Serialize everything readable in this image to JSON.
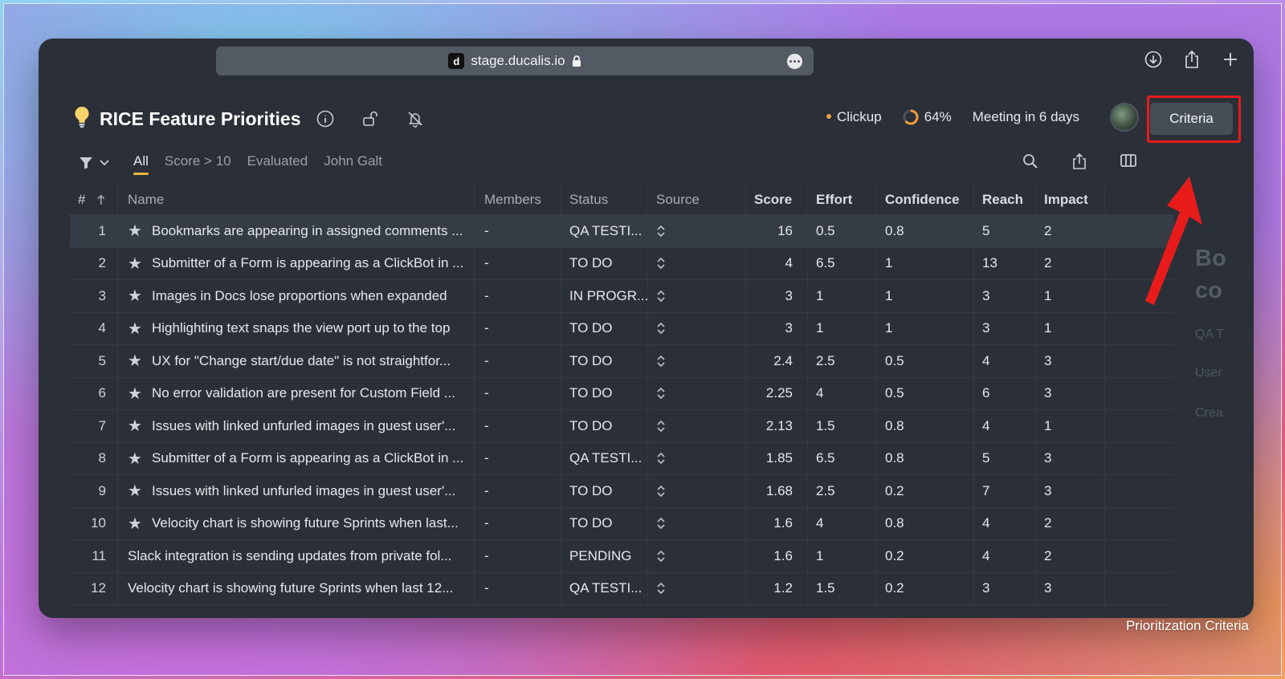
{
  "browser": {
    "url": "stage.ducalis.io",
    "favicon_letter": "d",
    "toolbar_icons": [
      "download-icon",
      "share-icon",
      "new-tab-icon"
    ]
  },
  "header": {
    "title": "RICE Feature Priorities",
    "integration": "Clickup",
    "progress_label": "64%",
    "progress_value": 64,
    "meeting": "Meeting in 6 days",
    "criteria_button": "Criteria",
    "accent_color": "#f3b63f",
    "highlight_color": "#e81b1b"
  },
  "filters": {
    "tabs": [
      "All",
      "Score > 10",
      "Evaluated",
      "John Galt"
    ],
    "active_tab": "All"
  },
  "table": {
    "headers": {
      "num": "#",
      "name": "Name",
      "members": "Members",
      "status": "Status",
      "source": "Source",
      "score": "Score",
      "effort": "Effort",
      "confidence": "Confidence",
      "reach": "Reach",
      "impact": "Impact"
    },
    "rows": [
      {
        "num": "1",
        "starred": true,
        "name": "Bookmarks are appearing in assigned comments ...",
        "members": "-",
        "status": "QA TESTI...",
        "score": "16",
        "effort": "0.5",
        "confidence": "0.8",
        "reach": "5",
        "impact": "2"
      },
      {
        "num": "2",
        "starred": true,
        "name": "Submitter of a Form is appearing as a ClickBot in ...",
        "members": "-",
        "status": "TO DO",
        "score": "4",
        "effort": "6.5",
        "confidence": "1",
        "reach": "13",
        "impact": "2"
      },
      {
        "num": "3",
        "starred": true,
        "name": "Images in Docs lose proportions when expanded",
        "members": "-",
        "status": "IN PROGR...",
        "score": "3",
        "effort": "1",
        "confidence": "1",
        "reach": "3",
        "impact": "1"
      },
      {
        "num": "4",
        "starred": true,
        "name": "Highlighting text snaps the view port up to the top",
        "members": "-",
        "status": "TO DO",
        "score": "3",
        "effort": "1",
        "confidence": "1",
        "reach": "3",
        "impact": "1"
      },
      {
        "num": "5",
        "starred": true,
        "name": "UX for \"Change start/due date\" is not straightfor...",
        "members": "-",
        "status": "TO DO",
        "score": "2.4",
        "effort": "2.5",
        "confidence": "0.5",
        "reach": "4",
        "impact": "3"
      },
      {
        "num": "6",
        "starred": true,
        "name": "No error validation are present for Custom Field ...",
        "members": "-",
        "status": "TO DO",
        "score": "2.25",
        "effort": "4",
        "confidence": "0.5",
        "reach": "6",
        "impact": "3"
      },
      {
        "num": "7",
        "starred": true,
        "name": "Issues with linked unfurled images in guest user'...",
        "members": "-",
        "status": "TO DO",
        "score": "2.13",
        "effort": "1.5",
        "confidence": "0.8",
        "reach": "4",
        "impact": "1"
      },
      {
        "num": "8",
        "starred": true,
        "name": "Submitter of a Form is appearing as a ClickBot in ...",
        "members": "-",
        "status": "QA TESTI...",
        "score": "1.85",
        "effort": "6.5",
        "confidence": "0.8",
        "reach": "5",
        "impact": "3"
      },
      {
        "num": "9",
        "starred": true,
        "name": "Issues with linked unfurled images in guest user'...",
        "members": "-",
        "status": "TO DO",
        "score": "1.68",
        "effort": "2.5",
        "confidence": "0.2",
        "reach": "7",
        "impact": "3"
      },
      {
        "num": "10",
        "starred": true,
        "name": "Velocity chart is showing future Sprints when last...",
        "members": "-",
        "status": "TO DO",
        "score": "1.6",
        "effort": "4",
        "confidence": "0.8",
        "reach": "4",
        "impact": "2"
      },
      {
        "num": "11",
        "starred": false,
        "name": "Slack integration is sending updates from private fol...",
        "members": "-",
        "status": "PENDING",
        "score": "1.6",
        "effort": "1",
        "confidence": "0.2",
        "reach": "4",
        "impact": "2"
      },
      {
        "num": "12",
        "starred": false,
        "name": "Velocity chart is showing future Sprints when last 12...",
        "members": "-",
        "status": "QA TESTI...",
        "score": "1.2",
        "effort": "1.5",
        "confidence": "0.2",
        "reach": "3",
        "impact": "3"
      }
    ]
  },
  "side_panel": {
    "dash": "-",
    "title_fragment_1": "Bo",
    "title_fragment_2": "co",
    "status_fragment": "QA T",
    "user_fragment": "User",
    "created_fragment": "Crea"
  },
  "caption": "Prioritization Criteria"
}
